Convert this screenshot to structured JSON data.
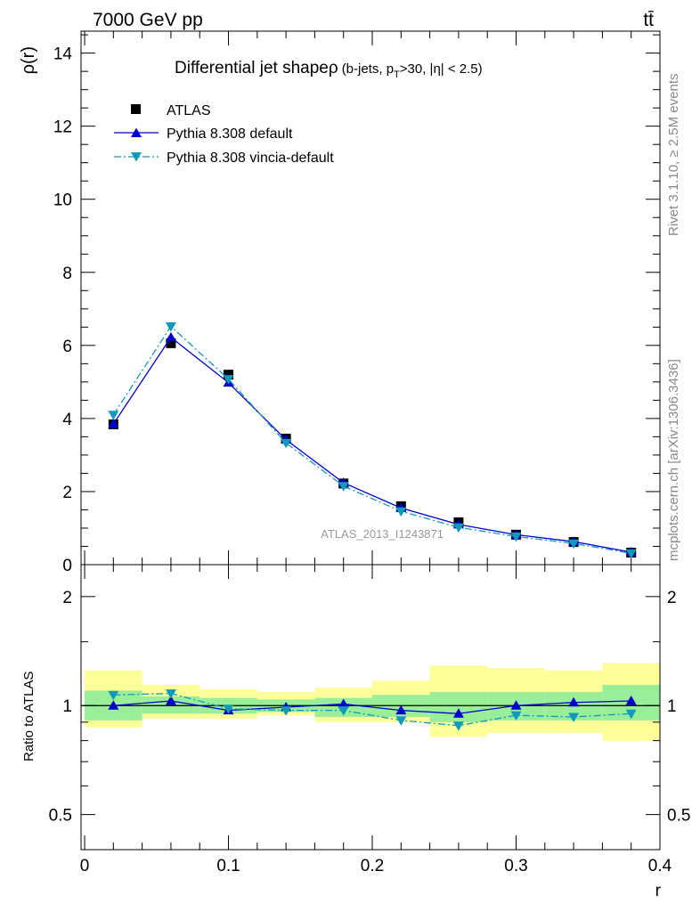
{
  "header": {
    "left": "7000 GeV pp",
    "right": "tt̄"
  },
  "side_text": {
    "rivet": "Rivet 3.1.10, ≥ 2.5M events",
    "mcplots": "mcplots.cern.ch [arXiv:1306.3436]"
  },
  "chart_data": [
    {
      "type": "scatter",
      "title": "Differential jet shapeρ",
      "subtitle_parts": [
        "(b-jets, p",
        "T",
        ">30, |η| < 2.5)"
      ],
      "watermark": "ATLAS_2013_I1243871",
      "ylabel": "ρ(r)",
      "xlabel": "",
      "xlim": [
        -0.0025,
        0.4
      ],
      "ylim": [
        0,
        14.6
      ],
      "y_ticks": [
        0,
        2,
        4,
        6,
        8,
        10,
        12,
        14
      ],
      "y_tick_labels": [
        "0",
        "2",
        "4",
        "6",
        "8",
        "10",
        "12",
        "14"
      ],
      "legend_position": "top-left",
      "x": [
        0.02,
        0.06,
        0.1,
        0.14,
        0.18,
        0.22,
        0.26,
        0.3,
        0.34,
        0.38
      ],
      "series": [
        {
          "name": "ATLAS",
          "color": "#000000",
          "marker": "square",
          "line": "none",
          "values": [
            3.84,
            6.06,
            5.2,
            3.45,
            2.22,
            1.6,
            1.16,
            0.82,
            0.62,
            0.33
          ]
        },
        {
          "name": "Pythia 8.308 default",
          "color": "#0000cc",
          "marker": "triangle-up",
          "line": "solid",
          "values": [
            3.85,
            6.22,
            4.98,
            3.42,
            2.24,
            1.55,
            1.1,
            0.82,
            0.63,
            0.34
          ]
        },
        {
          "name": "Pythia 8.308 vincia-default",
          "color": "#1199bb",
          "marker": "triangle-down",
          "line": "dashdot",
          "values": [
            4.1,
            6.52,
            5.08,
            3.33,
            2.15,
            1.46,
            1.02,
            0.77,
            0.58,
            0.31
          ]
        }
      ]
    },
    {
      "type": "scatter",
      "ylabel": "Ratio to ATLAS",
      "xlabel": "r",
      "xlim": [
        -0.0025,
        0.4
      ],
      "ylim": [
        0.4,
        2.45
      ],
      "y_scale": "log",
      "y_ticks": [
        0.5,
        1,
        2
      ],
      "y_tick_labels": [
        "0.5",
        "1",
        "2"
      ],
      "x_ticks": [
        0,
        0.1,
        0.2,
        0.3,
        0.4
      ],
      "x_tick_labels": [
        "0",
        "0.1",
        "0.2",
        "0.3",
        "0.4"
      ],
      "reference_line": 1,
      "bins": [
        0,
        0.04,
        0.08,
        0.12,
        0.16,
        0.2,
        0.24,
        0.28,
        0.32,
        0.36,
        0.4
      ],
      "band_colors": {
        "inner": "#99ee99",
        "outer": "#ffff99"
      },
      "band_inner": [
        [
          0.91,
          1.1
        ],
        [
          0.95,
          1.06
        ],
        [
          0.95,
          1.05
        ],
        [
          0.96,
          1.04
        ],
        [
          0.93,
          1.05
        ],
        [
          0.93,
          1.07
        ],
        [
          0.9,
          1.09
        ],
        [
          0.91,
          1.09
        ],
        [
          0.91,
          1.09
        ],
        [
          0.91,
          1.14
        ]
      ],
      "band_outer": [
        [
          0.87,
          1.25
        ],
        [
          0.92,
          1.14
        ],
        [
          0.92,
          1.11
        ],
        [
          0.94,
          1.09
        ],
        [
          0.9,
          1.12
        ],
        [
          0.9,
          1.17
        ],
        [
          0.82,
          1.29
        ],
        [
          0.84,
          1.27
        ],
        [
          0.84,
          1.25
        ],
        [
          0.8,
          1.31
        ]
      ],
      "x": [
        0.02,
        0.06,
        0.1,
        0.14,
        0.18,
        0.22,
        0.26,
        0.3,
        0.34,
        0.38
      ],
      "series": [
        {
          "name": "Pythia 8.308 default",
          "color": "#0000cc",
          "marker": "triangle-up",
          "line": "solid",
          "values": [
            1.0,
            1.03,
            0.97,
            0.99,
            1.01,
            0.97,
            0.95,
            1.0,
            1.02,
            1.03
          ]
        },
        {
          "name": "Pythia 8.308 vincia-default",
          "color": "#1199bb",
          "marker": "triangle-down",
          "line": "dashdot",
          "values": [
            1.07,
            1.08,
            0.98,
            0.97,
            0.97,
            0.91,
            0.88,
            0.94,
            0.93,
            0.95
          ]
        }
      ]
    }
  ]
}
